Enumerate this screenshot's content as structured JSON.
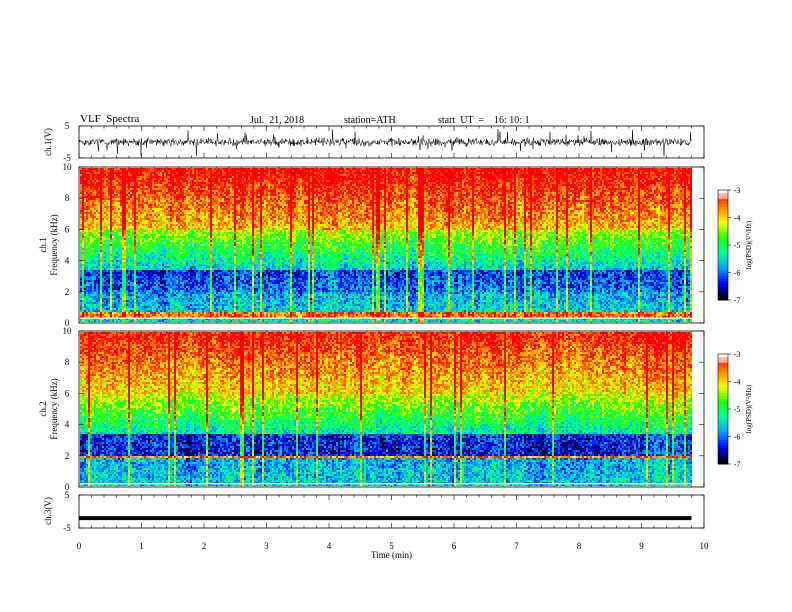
{
  "header": {
    "title": "VLF  Spectra",
    "date": "Jul.  21, 2018",
    "station": "station=ATH",
    "start": "start  UT  =    16: 10: 1"
  },
  "colors": {
    "colorbar": [
      "#000000",
      "#0000ff",
      "#00a0ff",
      "#00ffa0",
      "#20ff00",
      "#ffff00",
      "#ff8000",
      "#ff0000",
      "#ffffff"
    ]
  },
  "chart_data": [
    {
      "type": "line",
      "name": "ch1-waveform",
      "ylabel": "ch.1(V)",
      "ylim": [
        -5,
        5
      ],
      "yticks": [
        5,
        -5
      ],
      "x_range": [
        0,
        9.8
      ],
      "amplitude_typical": 1.5
    },
    {
      "type": "heatmap",
      "name": "ch1-spectrogram",
      "ylabel": "ch.1\nFrequency  (kHz)",
      "ylim": [
        0,
        10
      ],
      "yticks": [
        0,
        2,
        4,
        6,
        8,
        10
      ],
      "x_range": [
        0,
        9.8
      ],
      "colorbar": {
        "label": "log(PSD)(V²/Hz)",
        "range": [
          -7,
          -3
        ],
        "ticks": [
          -3,
          -4,
          -5,
          -6,
          -7
        ]
      }
    },
    {
      "type": "heatmap",
      "name": "ch2-spectrogram",
      "ylabel": "ch.2\nFrequency  (kHz)",
      "ylim": [
        0,
        10
      ],
      "yticks": [
        0,
        2,
        4,
        6,
        8,
        10
      ],
      "x_range": [
        0,
        9.8
      ],
      "colorbar": {
        "label": "log(PSD)(V²/Hz)",
        "range": [
          -7,
          -3
        ],
        "ticks": [
          -3,
          -4,
          -5,
          -6,
          -7
        ]
      }
    },
    {
      "type": "line",
      "name": "ch3-waveform",
      "ylabel": "ch.3(V)",
      "ylim": [
        -5,
        5
      ],
      "yticks": [
        5,
        -5
      ],
      "x_range": [
        0,
        9.8
      ],
      "level": -2
    },
    {
      "type": "axis",
      "name": "time-axis",
      "xlabel": "Time  (min)",
      "xlim": [
        0,
        10
      ],
      "xticks": [
        0,
        1,
        2,
        3,
        4,
        5,
        6,
        7,
        8,
        9,
        10
      ]
    }
  ]
}
